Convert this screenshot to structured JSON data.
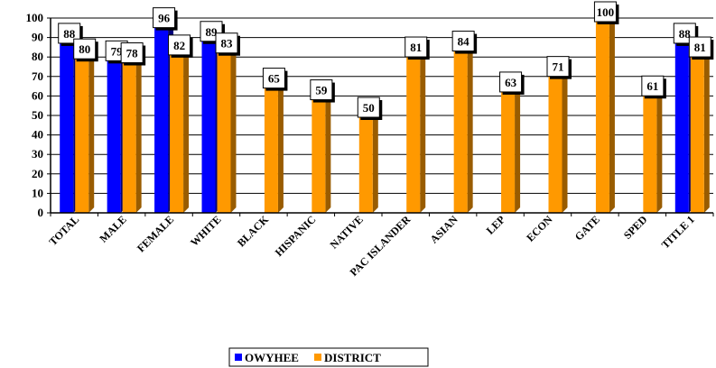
{
  "colors": {
    "owyhee": "#0000ff",
    "district": "#ff9900",
    "owyhee_side": "#00007a",
    "district_side": "#995c00",
    "grid": "#000000"
  },
  "chart_data": {
    "type": "bar",
    "categories": [
      "TOTAL",
      "MALE",
      "FEMALE",
      "WHITE",
      "BLACK",
      "HISPANIC",
      "NATIVE",
      "PAC ISLANDER",
      "ASIAN",
      "LEP",
      "ECON",
      "GATE",
      "SPED",
      "TITLE 1"
    ],
    "series": [
      {
        "name": "OWYHEE",
        "values": [
          88,
          79,
          96,
          89,
          null,
          null,
          null,
          null,
          null,
          null,
          null,
          null,
          null,
          88
        ]
      },
      {
        "name": "DISTRICT",
        "values": [
          80,
          78,
          82,
          83,
          65,
          59,
          50,
          81,
          84,
          63,
          71,
          100,
          61,
          81
        ]
      }
    ],
    "ylim": [
      0,
      100
    ],
    "yticks": [
      0,
      10,
      20,
      30,
      40,
      50,
      60,
      70,
      80,
      90,
      100
    ],
    "grid": true,
    "legend_position": "bottom-center",
    "title": "",
    "xlabel": "",
    "ylabel": ""
  }
}
